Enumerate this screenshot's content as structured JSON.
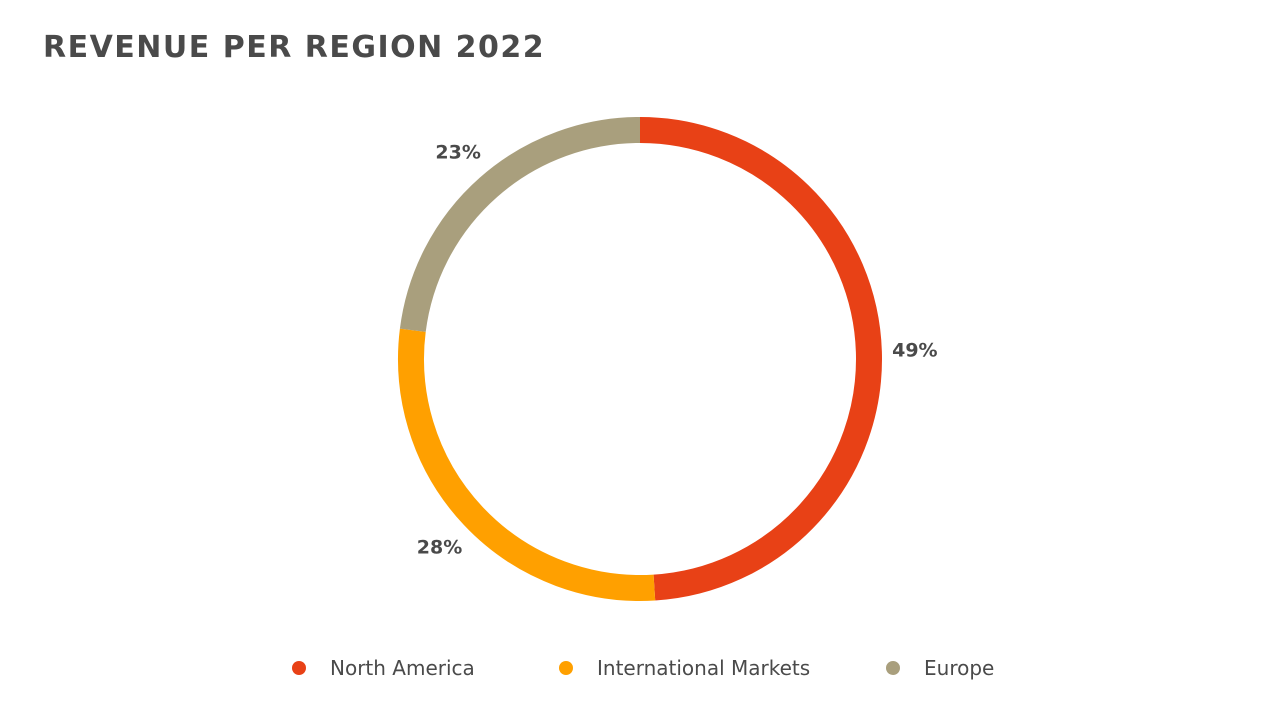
{
  "chart_data": {
    "type": "pie",
    "variant": "donut",
    "title": "REVENUE PER REGION 2022",
    "categories": [
      "North America",
      "International Markets",
      "Europe"
    ],
    "values": [
      49,
      28,
      23
    ],
    "value_labels": [
      "49%",
      "28%",
      "23%"
    ],
    "colors": [
      "#e84116",
      "#ffa000",
      "#a99f7d"
    ],
    "legend_position": "bottom"
  }
}
